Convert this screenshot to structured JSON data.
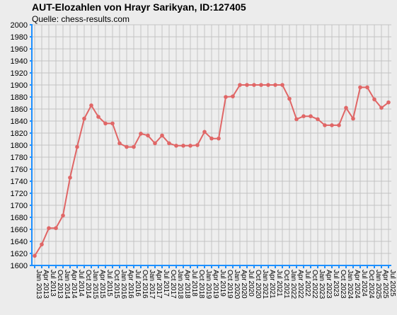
{
  "title": "AUT-Elozahlen von Hrayr Sarikyan, ID:127405",
  "subtitle": "Quelle: chess-results.com",
  "chart_data": {
    "type": "line",
    "title": "AUT-Elozahlen von Hrayr Sarikyan, ID:127405",
    "xlabel": "",
    "ylabel": "",
    "ylim": [
      1600,
      2000
    ],
    "yticks": [
      1600,
      1620,
      1640,
      1660,
      1680,
      1700,
      1720,
      1740,
      1760,
      1780,
      1800,
      1820,
      1840,
      1860,
      1880,
      1900,
      1920,
      1940,
      1960,
      1980,
      2000
    ],
    "grid": true,
    "line_color": "#e06666",
    "axis_color": "#1e90ff",
    "x": [
      "Jan 2013",
      "Apr 2013",
      "Jul 2013",
      "Oct 2013",
      "Jan 2014",
      "Apr 2014",
      "Jul 2014",
      "Oct 2014",
      "Jan 2015",
      "Apr 2015",
      "Jul 2015",
      "Oct 2015",
      "Jan 2016",
      "Apr 2016",
      "Jul 2016",
      "Oct 2016",
      "Jan 2017",
      "Apr 2017",
      "Jul 2017",
      "Oct 2017",
      "Jan 2018",
      "Apr 2018",
      "Jul 2018",
      "Oct 2018",
      "Jan 2019",
      "Apr 2019",
      "Jul 2019",
      "Oct 2019",
      "Jan 2020",
      "Apr 2020",
      "Jul 2020",
      "Oct 2020",
      "Jan 2021",
      "Apr 2021",
      "Jul 2021",
      "Oct 2021",
      "Jan 2022",
      "Apr 2022",
      "Jul 2022",
      "Oct 2022",
      "Jan 2023",
      "Apr 2023",
      "Jul 2023",
      "Oct 2023",
      "Jan 2024",
      "Apr 2024",
      "Jul 2024",
      "Oct 2024",
      "Jan 2025",
      "Apr 2025",
      "Jul 2025"
    ],
    "series": [
      {
        "values": [
          1616,
          1635,
          1662,
          1662,
          1683,
          1746,
          1797,
          1844,
          1866,
          1847,
          1836,
          1836,
          1803,
          1797,
          1797,
          1819,
          1816,
          1803,
          1816,
          1803,
          1799,
          1799,
          1799,
          1800,
          1822,
          1811,
          1811,
          1880,
          1881,
          1900,
          1900,
          1900,
          1900,
          1900,
          1900,
          1900,
          1877,
          1843,
          1848,
          1848,
          1843,
          1833,
          1833,
          1833,
          1862,
          1844,
          1896,
          1896,
          1876,
          1862,
          1871
        ]
      }
    ]
  }
}
